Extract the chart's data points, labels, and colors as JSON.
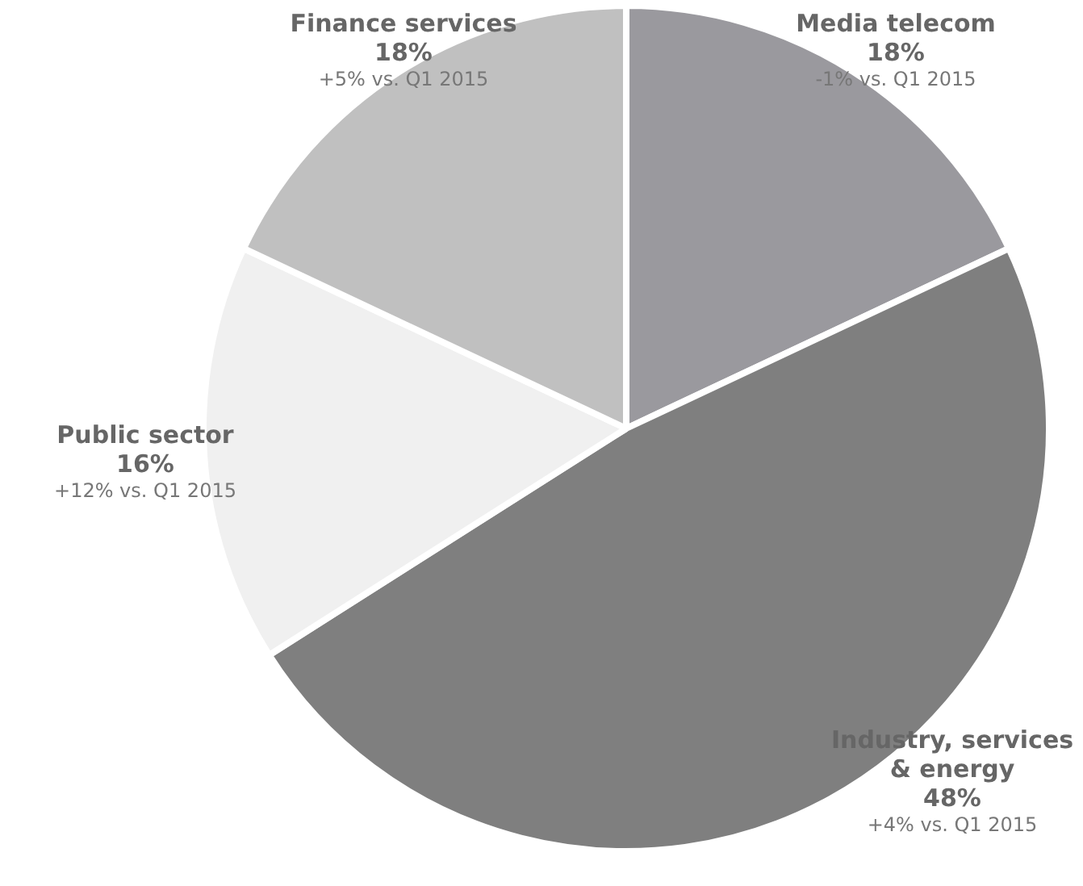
{
  "chart_data": {
    "type": "pie",
    "categories": [
      "Media telecom",
      "Industry, services\n& energy",
      "Public sector",
      "Finance services"
    ],
    "values": [
      18,
      48,
      16,
      18
    ],
    "colors": [
      "#9a999e",
      "#7f7f7f",
      "#f0f0f0",
      "#c0c0c0"
    ],
    "value_labels": [
      "18%",
      "48%",
      "16%",
      "18%"
    ],
    "annotations": [
      {
        "text": "-1% vs. Q1 2015",
        "x": "Media telecom"
      },
      {
        "text": "+4% vs. Q1 2015",
        "x": "Industry, services\n& energy"
      },
      {
        "text": "+12% vs. Q1 2015",
        "x": "Public sector"
      },
      {
        "text": "+5% vs. Q1 2015",
        "x": "Finance services"
      }
    ],
    "legend": false
  }
}
